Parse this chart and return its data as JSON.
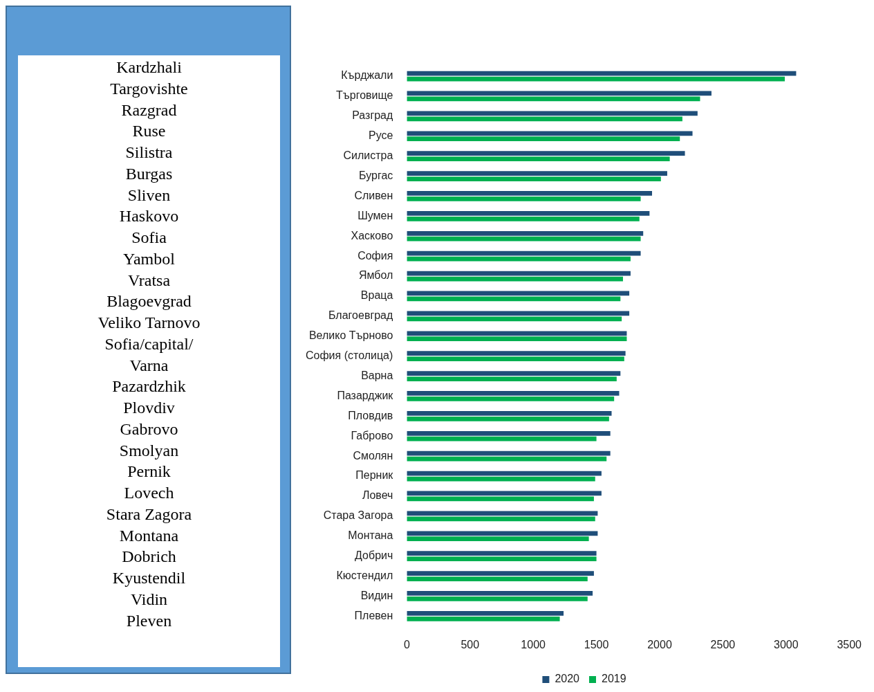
{
  "chart_data": [
    {
      "type": "other",
      "annotations": [
        "Kardzhali",
        "Targovishte",
        "Razgrad",
        "Ruse",
        "Silistra",
        "Burgas",
        "Sliven",
        "Haskovo",
        "Sofia",
        "Yambol",
        "Vratsa",
        "Blagoevgrad",
        "Veliko Tarnovo",
        "Sofia/capital/",
        "Varna",
        "Pazardzhik",
        "Plovdiv",
        "Gabrovo",
        "Smolyan",
        "Pernik",
        "Lovech",
        "Stara Zagora",
        "Montana",
        "Dobrich",
        "Kyustendil",
        "Vidin",
        "Pleven"
      ]
    },
    {
      "type": "bar",
      "orientation": "horizontal",
      "categories": [
        "Кърджали",
        "Търговище",
        "Разград",
        "Русе",
        "Силистра",
        "Бургас",
        "Сливен",
        "Шумен",
        "Хасково",
        "София",
        "Ямбол",
        "Враца",
        "Благоевград",
        "Велико Търново",
        "София (столица)",
        "Варна",
        "Пазарджик",
        "Пловдив",
        "Габрово",
        "Смолян",
        "Перник",
        "Ловеч",
        "Стара Загора",
        "Монтана",
        "Добрич",
        "Кюстендил",
        "Видин",
        "Плевен"
      ],
      "series": [
        {
          "name": "2020",
          "color": "#1f4e79",
          "values": [
            3080,
            2410,
            2300,
            2260,
            2200,
            2060,
            1940,
            1920,
            1870,
            1850,
            1770,
            1760,
            1760,
            1740,
            1730,
            1690,
            1680,
            1620,
            1610,
            1610,
            1540,
            1540,
            1510,
            1510,
            1500,
            1480,
            1470,
            1240
          ]
        },
        {
          "name": "2019",
          "color": "#00b050",
          "values": [
            2990,
            2320,
            2180,
            2160,
            2080,
            2010,
            1850,
            1840,
            1850,
            1770,
            1710,
            1690,
            1700,
            1740,
            1720,
            1660,
            1640,
            1600,
            1500,
            1580,
            1490,
            1480,
            1490,
            1440,
            1500,
            1430,
            1430,
            1210
          ]
        }
      ],
      "xlim": [
        0,
        3500
      ],
      "xticks": [
        0,
        500,
        1000,
        1500,
        2000,
        2500,
        3000,
        3500
      ],
      "grid": false,
      "legend": "bottom"
    }
  ]
}
